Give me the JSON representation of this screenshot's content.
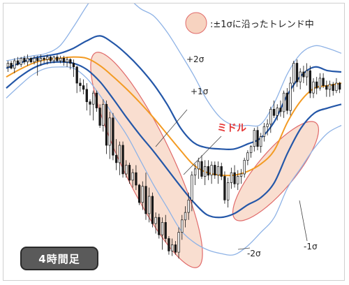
{
  "legend": {
    "text": ":±1σに沿ったトレンド中"
  },
  "timeframe": {
    "label": "4時間足"
  },
  "colors": {
    "band2": "#8fb3e6",
    "band1": "#2457a8",
    "middle": "#f39b23",
    "bull": "#ffffff",
    "bear": "#1a1a1a",
    "highlight_fill": "#f7d3c0",
    "highlight_stroke": "#e06a6a",
    "middle_label": "#e53535"
  },
  "chart_data": {
    "type": "line",
    "title": "",
    "series": [
      {
        "name": "+2σ",
        "values": [
          68,
          70,
          72,
          74,
          80,
          95,
          112,
          127,
          132,
          120,
          110,
          104,
          91,
          74,
          56,
          36,
          22,
          16,
          16,
          17,
          34,
          58,
          74,
          80,
          78,
          74
        ]
      },
      {
        "name": "+1σ",
        "values": [
          62,
          66,
          70,
          72,
          74,
          78,
          84,
          88,
          82,
          73,
          62,
          49,
          33,
          14,
          2,
          -2,
          -3,
          -3,
          1,
          6,
          19,
          41,
          56,
          63,
          60,
          59
        ]
      },
      {
        "name": "ミドル",
        "values": [
          55,
          61,
          66,
          69,
          70,
          71,
          70,
          64,
          55,
          45,
          34,
          22,
          9,
          -4,
          -16,
          -22,
          -24,
          -24,
          -21,
          -15,
          -4,
          19,
          36,
          46,
          48,
          50
        ]
      },
      {
        "name": "-1σ",
        "values": [
          46,
          55,
          62,
          66,
          67,
          66,
          61,
          51,
          37,
          22,
          8,
          -5,
          -19,
          -33,
          -46,
          -56,
          -58,
          -55,
          -48,
          -42,
          -30,
          -6,
          14,
          26,
          30,
          33
        ]
      },
      {
        "name": "-2σ",
        "values": [
          38,
          48,
          57,
          62,
          63,
          62,
          54,
          40,
          24,
          8,
          -12,
          -32,
          -50,
          -68,
          -78,
          -84,
          -87,
          -88,
          -81,
          -70,
          -58,
          -34,
          -18,
          -2,
          10,
          16
        ]
      }
    ],
    "candles": [
      [
        63,
        68,
        59,
        66
      ],
      [
        66,
        68,
        61,
        62
      ],
      [
        62,
        70,
        58,
        68
      ],
      [
        68,
        71,
        64,
        65
      ],
      [
        65,
        71,
        63,
        70
      ],
      [
        70,
        72,
        65,
        67
      ],
      [
        67,
        73,
        64,
        70
      ],
      [
        70,
        71,
        66,
        67
      ],
      [
        67,
        72,
        65,
        70
      ],
      [
        70,
        72,
        56,
        68
      ],
      [
        68,
        73,
        64,
        70
      ],
      [
        70,
        72,
        66,
        69
      ],
      [
        69,
        73,
        65,
        71
      ],
      [
        71,
        72,
        66,
        68
      ],
      [
        68,
        72,
        66,
        71
      ],
      [
        71,
        73,
        67,
        68
      ],
      [
        68,
        72,
        66,
        70
      ],
      [
        70,
        72,
        64,
        67
      ],
      [
        67,
        71,
        63,
        69
      ],
      [
        69,
        70,
        61,
        66
      ],
      [
        66,
        69,
        55,
        63
      ],
      [
        63,
        64,
        42,
        50
      ],
      [
        50,
        54,
        43,
        48
      ],
      [
        48,
        53,
        41,
        45
      ],
      [
        45,
        50,
        28,
        35
      ],
      [
        35,
        37,
        24,
        33
      ],
      [
        33,
        44,
        20,
        42
      ],
      [
        42,
        44,
        27,
        30
      ],
      [
        30,
        33,
        14,
        16
      ],
      [
        16,
        37,
        11,
        33
      ],
      [
        33,
        36,
        -7,
        0
      ],
      [
        0,
        27,
        -11,
        22
      ],
      [
        22,
        26,
        -12,
        -8
      ],
      [
        -8,
        5,
        -20,
        -14
      ],
      [
        -14,
        3,
        -24,
        0
      ],
      [
        0,
        3,
        -26,
        -23
      ],
      [
        -23,
        -12,
        -26,
        -16
      ],
      [
        -16,
        -14,
        -31,
        -28
      ],
      [
        -28,
        -19,
        -34,
        -22
      ],
      [
        -22,
        -16,
        -36,
        -32
      ],
      [
        -32,
        -31,
        -48,
        -46
      ],
      [
        -46,
        -29,
        -52,
        -33
      ],
      [
        -33,
        -22,
        -60,
        -55
      ],
      [
        -55,
        -34,
        -62,
        -41
      ],
      [
        -41,
        -38,
        -66,
        -63
      ],
      [
        -63,
        -54,
        -71,
        -58
      ],
      [
        -58,
        -55,
        -75,
        -72
      ],
      [
        -72,
        -58,
        -84,
        -62
      ],
      [
        -62,
        -56,
        -78,
        -75
      ],
      [
        -75,
        -73,
        -88,
        -85
      ],
      [
        -85,
        -75,
        -89,
        -80
      ],
      [
        -80,
        -77,
        -88,
        -86
      ],
      [
        -86,
        -66,
        -91,
        -70
      ],
      [
        -70,
        -56,
        -76,
        -60
      ],
      [
        -60,
        -49,
        -66,
        -54
      ],
      [
        -54,
        -38,
        -60,
        -44
      ],
      [
        -44,
        -21,
        -53,
        -24
      ],
      [
        -24,
        -15,
        -32,
        -19
      ],
      [
        -19,
        -10,
        -27,
        -13
      ],
      [
        -13,
        -8,
        -27,
        -25
      ],
      [
        -25,
        -12,
        -32,
        -17
      ],
      [
        -17,
        -12,
        -28,
        -24
      ],
      [
        -24,
        -13,
        -31,
        -16
      ],
      [
        -16,
        -13,
        -27,
        -24
      ],
      [
        -24,
        -13,
        -31,
        -17
      ],
      [
        -17,
        -14,
        -28,
        -25
      ],
      [
        -25,
        -21,
        -47,
        -44
      ],
      [
        -44,
        -26,
        -50,
        -30
      ],
      [
        -30,
        -18,
        -35,
        -22
      ],
      [
        -22,
        -16,
        -34,
        -31
      ],
      [
        -31,
        -20,
        -36,
        -25
      ],
      [
        -25,
        -19,
        -31,
        -23
      ],
      [
        -23,
        -10,
        -26,
        -12
      ],
      [
        -12,
        -4,
        -16,
        -6
      ],
      [
        -6,
        0,
        -10,
        -1
      ],
      [
        -1,
        14,
        -5,
        12
      ],
      [
        12,
        15,
        -4,
        -1
      ],
      [
        -1,
        10,
        -6,
        7
      ],
      [
        7,
        18,
        3,
        15
      ],
      [
        15,
        21,
        8,
        17
      ],
      [
        17,
        31,
        10,
        29
      ],
      [
        29,
        36,
        22,
        24
      ],
      [
        24,
        33,
        20,
        30
      ],
      [
        30,
        36,
        23,
        27
      ],
      [
        27,
        44,
        22,
        42
      ],
      [
        42,
        46,
        25,
        28
      ],
      [
        28,
        55,
        24,
        50
      ],
      [
        50,
        68,
        43,
        66
      ],
      [
        66,
        69,
        47,
        51
      ],
      [
        51,
        62,
        45,
        59
      ],
      [
        59,
        64,
        50,
        55
      ],
      [
        55,
        66,
        48,
        60
      ],
      [
        60,
        64,
        38,
        42
      ],
      [
        42,
        54,
        38,
        51
      ],
      [
        51,
        55,
        41,
        46
      ],
      [
        46,
        58,
        44,
        54
      ],
      [
        54,
        58,
        46,
        48
      ],
      [
        48,
        52,
        39,
        45
      ],
      [
        45,
        52,
        39,
        49
      ],
      [
        49,
        51,
        40,
        44
      ],
      [
        44,
        54,
        42,
        50
      ],
      [
        50,
        51,
        42,
        45
      ]
    ],
    "annotations": [
      "+2σ",
      "+1σ",
      "ミドル",
      "-1σ",
      "-2σ"
    ],
    "highlight_regions": 2,
    "grid": false
  }
}
